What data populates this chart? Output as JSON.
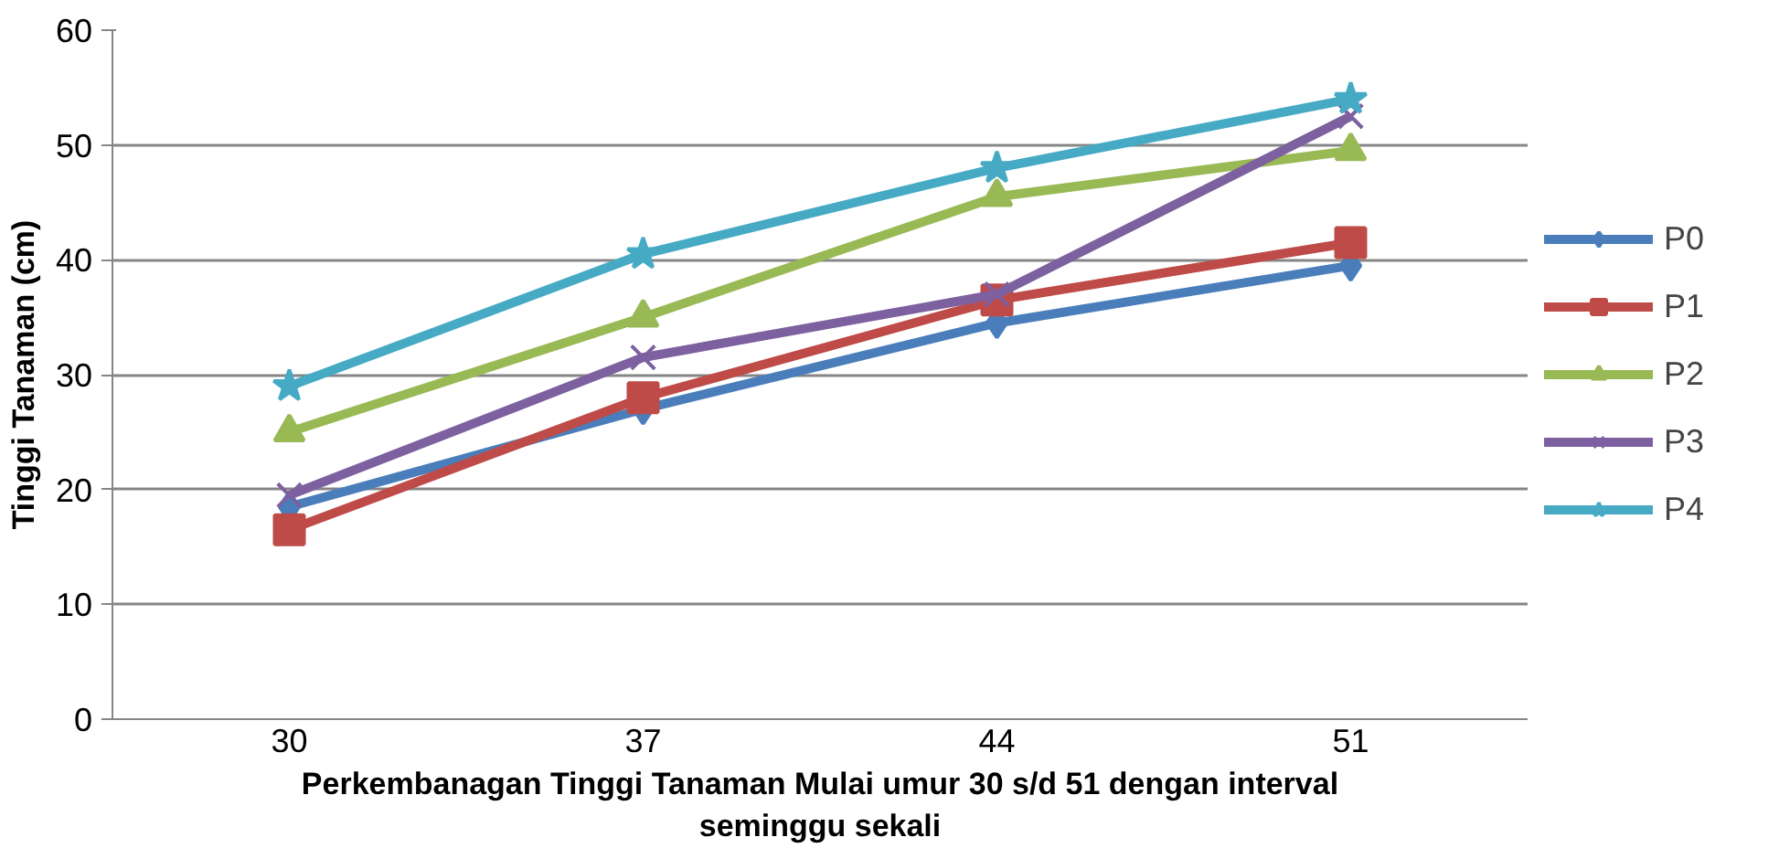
{
  "chart_data": {
    "type": "line",
    "xlabel": "Perkembanagan Tinggi Tanaman Mulai umur 30 s/d 51 dengan interval\nseminggu sekali",
    "ylabel": "Tinggi Tanaman (cm)",
    "categories": [
      "30",
      "37",
      "44",
      "51"
    ],
    "ylim": [
      0,
      60
    ],
    "yticks": [
      0,
      10,
      20,
      30,
      40,
      50,
      60
    ],
    "grid": "y",
    "legend": "right",
    "series": [
      {
        "name": "P0",
        "color": "#4a7ebb",
        "marker": "diamond",
        "values": [
          18.5,
          27,
          34.5,
          39.5
        ]
      },
      {
        "name": "P1",
        "color": "#be4b48",
        "marker": "square",
        "values": [
          16.5,
          28,
          36.5,
          41.5
        ]
      },
      {
        "name": "P2",
        "color": "#98b954",
        "marker": "triangle",
        "values": [
          25,
          35,
          45.5,
          49.5
        ]
      },
      {
        "name": "P3",
        "color": "#7d60a0",
        "marker": "cross",
        "values": [
          19.5,
          31.5,
          37,
          52.5
        ]
      },
      {
        "name": "P4",
        "color": "#46aac5",
        "marker": "star",
        "values": [
          29,
          40.5,
          48,
          54
        ]
      }
    ]
  }
}
